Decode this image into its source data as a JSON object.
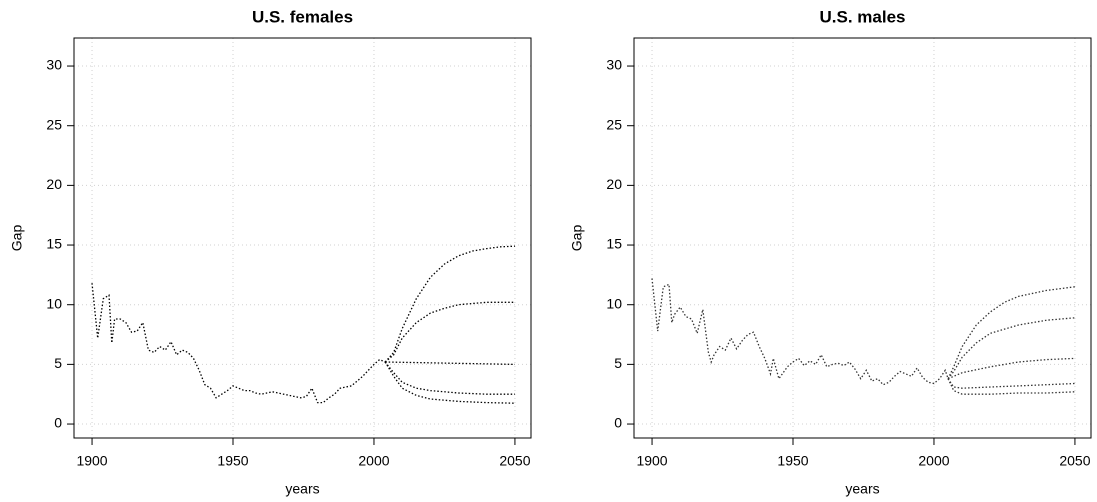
{
  "chart_data": [
    {
      "type": "line",
      "title": "U.S. females",
      "xlabel": "years",
      "ylabel": "Gap",
      "color": "#000000",
      "grid": true,
      "xlim": [
        1893.6,
        2055.7
      ],
      "ylim": [
        -1.17,
        32.35
      ],
      "xticks": [
        1900,
        1950,
        2000,
        2050
      ],
      "yticks": [
        0,
        5,
        10,
        15,
        20,
        25,
        30
      ],
      "series": [
        {
          "x": [
            1900,
            1902,
            1904,
            1906,
            1907,
            1908,
            1910,
            1912,
            1914,
            1916,
            1918,
            1920,
            1922,
            1924,
            1926,
            1928,
            1930,
            1932,
            1934,
            1936,
            1938,
            1940,
            1942,
            1944,
            1946,
            1948,
            1950,
            1952,
            1954,
            1956,
            1958,
            1960,
            1962,
            1964,
            1966,
            1968,
            1970,
            1972,
            1974,
            1976,
            1978,
            1980,
            1982,
            1984,
            1986,
            1988,
            1990,
            1992,
            1994,
            1996,
            1998,
            2000,
            2002,
            2004
          ],
          "values": [
            11.8,
            7.2,
            10.5,
            10.8,
            6.8,
            8.8,
            8.8,
            8.5,
            7.7,
            7.8,
            8.5,
            6.2,
            6.0,
            6.5,
            6.2,
            6.9,
            5.8,
            6.2,
            6.0,
            5.5,
            4.5,
            3.3,
            3.0,
            2.2,
            2.5,
            2.8,
            3.2,
            3.0,
            2.8,
            2.8,
            2.6,
            2.5,
            2.6,
            2.7,
            2.6,
            2.5,
            2.4,
            2.3,
            2.2,
            2.3,
            3.0,
            1.8,
            1.8,
            2.2,
            2.5,
            3.0,
            3.1,
            3.2,
            3.6,
            4.0,
            4.5,
            5.0,
            5.4,
            5.2
          ]
        },
        {
          "x": [
            2004,
            2007,
            2010,
            2015,
            2020,
            2025,
            2030,
            2035,
            2040,
            2045,
            2050
          ],
          "values": [
            5.2,
            6.0,
            8.0,
            10.5,
            12.3,
            13.4,
            14.1,
            14.5,
            14.7,
            14.85,
            14.9
          ]
        },
        {
          "x": [
            2004,
            2007,
            2010,
            2015,
            2020,
            2025,
            2030,
            2040,
            2050
          ],
          "values": [
            5.2,
            5.8,
            7.2,
            8.5,
            9.3,
            9.7,
            10.0,
            10.2,
            10.2
          ]
        },
        {
          "x": [
            2004,
            2050
          ],
          "values": [
            5.2,
            5.0
          ]
        },
        {
          "x": [
            2004,
            2007,
            2010,
            2015,
            2020,
            2030,
            2040,
            2050
          ],
          "values": [
            5.2,
            4.3,
            3.5,
            3.0,
            2.8,
            2.6,
            2.5,
            2.5
          ]
        },
        {
          "x": [
            2004,
            2007,
            2010,
            2015,
            2020,
            2030,
            2040,
            2050
          ],
          "values": [
            5.2,
            4.0,
            3.0,
            2.4,
            2.1,
            1.9,
            1.8,
            1.75
          ]
        }
      ]
    },
    {
      "type": "line",
      "title": "U.S. males",
      "xlabel": "years",
      "ylabel": "Gap",
      "color": "#333333",
      "grid": true,
      "xlim": [
        1893.6,
        2055.7
      ],
      "ylim": [
        -1.17,
        32.35
      ],
      "xticks": [
        1900,
        1950,
        2000,
        2050
      ],
      "yticks": [
        0,
        5,
        10,
        15,
        20,
        25,
        30
      ],
      "series": [
        {
          "x": [
            1900,
            1902,
            1904,
            1906,
            1907,
            1908,
            1910,
            1912,
            1914,
            1916,
            1918,
            1920,
            1921,
            1922,
            1924,
            1926,
            1928,
            1930,
            1932,
            1934,
            1936,
            1938,
            1940,
            1942,
            1943,
            1945,
            1948,
            1950,
            1952,
            1954,
            1956,
            1958,
            1960,
            1962,
            1964,
            1966,
            1968,
            1970,
            1972,
            1974,
            1976,
            1978,
            1980,
            1982,
            1984,
            1986,
            1988,
            1990,
            1992,
            1994,
            1996,
            1998,
            2000,
            2002,
            2004,
            2005
          ],
          "values": [
            12.2,
            7.8,
            11.5,
            11.7,
            8.5,
            9.2,
            9.8,
            9.0,
            8.8,
            7.6,
            9.6,
            6.0,
            5.2,
            5.8,
            6.5,
            6.2,
            7.2,
            6.3,
            7.0,
            7.5,
            7.7,
            6.5,
            5.5,
            4.2,
            5.5,
            3.8,
            4.8,
            5.2,
            5.5,
            4.9,
            5.3,
            5.0,
            5.8,
            4.8,
            5.0,
            5.1,
            4.9,
            5.2,
            4.6,
            3.8,
            4.5,
            3.6,
            3.8,
            3.3,
            3.5,
            4.0,
            4.4,
            4.2,
            4.0,
            4.7,
            3.9,
            3.5,
            3.4,
            3.8,
            4.5,
            3.8
          ]
        },
        {
          "x": [
            2005,
            2007,
            2010,
            2015,
            2020,
            2025,
            2030,
            2040,
            2050
          ],
          "values": [
            3.8,
            4.8,
            6.5,
            8.3,
            9.4,
            10.2,
            10.7,
            11.2,
            11.5
          ]
        },
        {
          "x": [
            2005,
            2007,
            2010,
            2015,
            2020,
            2030,
            2040,
            2050
          ],
          "values": [
            3.8,
            4.4,
            5.6,
            6.8,
            7.6,
            8.3,
            8.7,
            8.9
          ]
        },
        {
          "x": [
            2005,
            2010,
            2020,
            2030,
            2040,
            2050
          ],
          "values": [
            3.8,
            4.3,
            4.8,
            5.2,
            5.4,
            5.5
          ]
        },
        {
          "x": [
            2005,
            2007,
            2010,
            2020,
            2030,
            2040,
            2050
          ],
          "values": [
            3.8,
            3.1,
            3.0,
            3.1,
            3.2,
            3.3,
            3.4
          ]
        },
        {
          "x": [
            2005,
            2007,
            2010,
            2020,
            2030,
            2040,
            2050
          ],
          "values": [
            3.8,
            2.8,
            2.5,
            2.5,
            2.6,
            2.6,
            2.7
          ]
        }
      ]
    }
  ]
}
